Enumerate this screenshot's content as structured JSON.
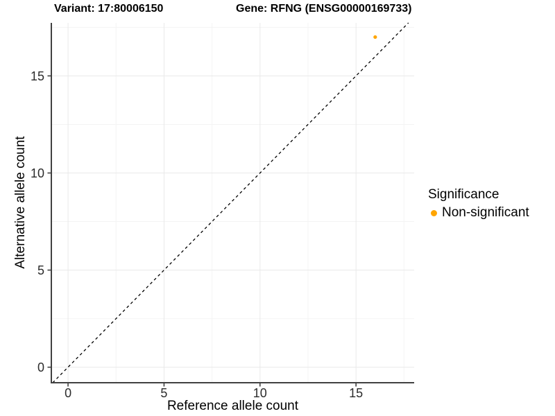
{
  "chart_data": {
    "type": "scatter",
    "title_variant": "Variant: 17:80006150",
    "title_gene": "Gene: RFNG (ENSG00000169733)",
    "xlabel": "Reference allele count",
    "ylabel": "Alternative allele count",
    "xlim": [
      -0.87,
      18.03
    ],
    "ylim": [
      -0.8,
      17.73
    ],
    "x_ticks": [
      0,
      5,
      10,
      15
    ],
    "y_ticks": [
      0,
      5,
      10,
      15
    ],
    "x_minor_ticks": [
      2.5,
      7.5,
      12.5,
      17.5
    ],
    "y_minor_ticks": [
      2.5,
      7.5,
      12.5,
      17.5
    ],
    "grid": true,
    "points": [
      {
        "x": 16,
        "y": 17,
        "series": "Non-significant"
      }
    ],
    "identity_line": {
      "slope": 1,
      "intercept": 0,
      "style": "dashed",
      "color": "#000000"
    },
    "legend": {
      "title": "Significance",
      "position": "right",
      "items": [
        {
          "label": "Non-significant",
          "color": "#FFA500"
        }
      ]
    }
  }
}
